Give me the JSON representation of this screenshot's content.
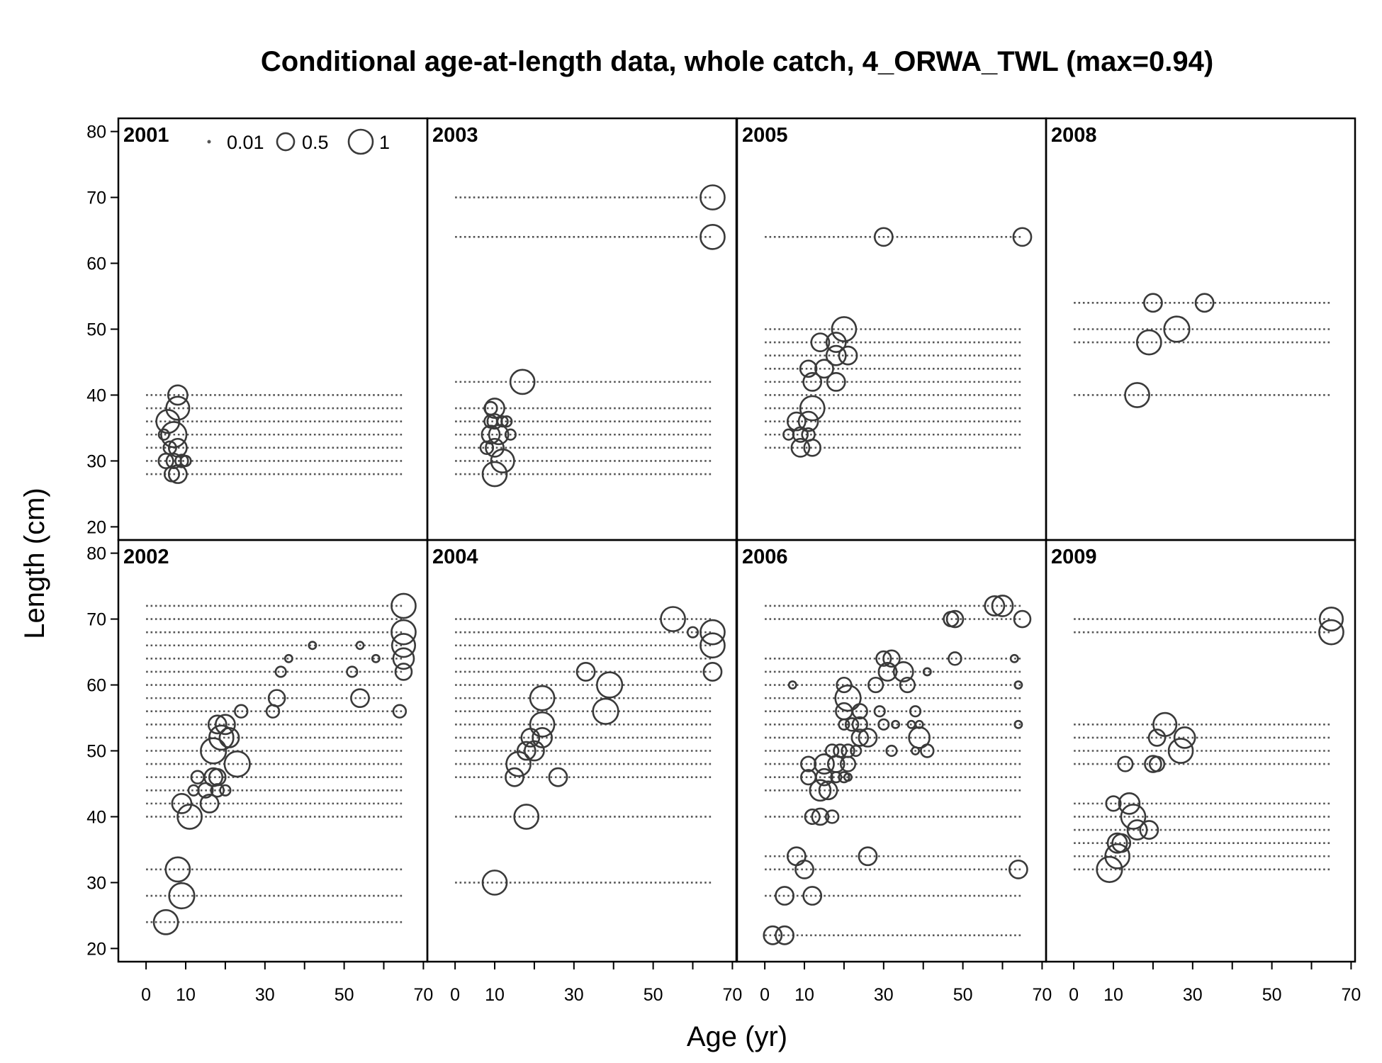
{
  "page": {
    "title": "Conditional age-at-length data, whole catch, 4_ORWA_TWL (max=0.94)"
  },
  "chart_data": {
    "type": "scatter",
    "title": "Conditional age-at-length data, whole catch, 4_ORWA_TWL (max=0.94)",
    "xlabel": "Age (yr)",
    "ylabel": "Length (cm)",
    "xlim": [
      -7,
      71
    ],
    "ylim": [
      18,
      82
    ],
    "x_ticks": [
      0,
      10,
      20,
      30,
      40,
      50,
      60,
      70
    ],
    "x_tick_labels": [
      0,
      10,
      30,
      50,
      70
    ],
    "y_ticks": [
      20,
      30,
      40,
      50,
      60,
      70,
      80
    ],
    "legend": {
      "placement": "top-left of first panel",
      "entries": [
        {
          "label": "0.01",
          "value": 0.01
        },
        {
          "label": "0.5",
          "value": 0.5
        },
        {
          "label": "1",
          "value": 1
        }
      ]
    },
    "panels": [
      {
        "year": "2001",
        "lengths": [
          28,
          30,
          32,
          34,
          36,
          38,
          40
        ],
        "points": [
          [
            5,
            30,
            0.2
          ],
          [
            6,
            32,
            0.15
          ],
          [
            5.5,
            36,
            0.5
          ],
          [
            7,
            34,
            0.6
          ],
          [
            8,
            38,
            0.5
          ],
          [
            8,
            40,
            0.35
          ],
          [
            8,
            32,
            0.3
          ],
          [
            6.5,
            28,
            0.2
          ],
          [
            8,
            28,
            0.3
          ],
          [
            7,
            30,
            0.2
          ],
          [
            9,
            30,
            0.15
          ],
          [
            10,
            30,
            0.1
          ],
          [
            4.5,
            34,
            0.1
          ]
        ]
      },
      {
        "year": "2002",
        "lengths": [
          24,
          28,
          32,
          40,
          42,
          44,
          46,
          48,
          50,
          52,
          54,
          56,
          58,
          60,
          62,
          64,
          66,
          68,
          70,
          72
        ],
        "points": [
          [
            5,
            24,
            0.55
          ],
          [
            9,
            28,
            0.6
          ],
          [
            8,
            32,
            0.55
          ],
          [
            11,
            40,
            0.55
          ],
          [
            9,
            42,
            0.35
          ],
          [
            16,
            42,
            0.3
          ],
          [
            12,
            44,
            0.1
          ],
          [
            15,
            44,
            0.2
          ],
          [
            18,
            44,
            0.15
          ],
          [
            20,
            44,
            0.1
          ],
          [
            13,
            46,
            0.15
          ],
          [
            17,
            46,
            0.3
          ],
          [
            18,
            46,
            0.25
          ],
          [
            23,
            48,
            0.6
          ],
          [
            17,
            50,
            0.6
          ],
          [
            19,
            52,
            0.55
          ],
          [
            21,
            52,
            0.35
          ],
          [
            18,
            54,
            0.3
          ],
          [
            20,
            54,
            0.35
          ],
          [
            24,
            56,
            0.15
          ],
          [
            32,
            56,
            0.15
          ],
          [
            64,
            56,
            0.15
          ],
          [
            33,
            58,
            0.25
          ],
          [
            54,
            58,
            0.3
          ],
          [
            34,
            62,
            0.1
          ],
          [
            52,
            62,
            0.1
          ],
          [
            65,
            62,
            0.25
          ],
          [
            36,
            64,
            0.05
          ],
          [
            58,
            64,
            0.05
          ],
          [
            65,
            64,
            0.4
          ],
          [
            42,
            66,
            0.05
          ],
          [
            54,
            66,
            0.05
          ],
          [
            65,
            66,
            0.5
          ],
          [
            65,
            68,
            0.55
          ],
          [
            65,
            72,
            0.55
          ]
        ]
      },
      {
        "year": "2003",
        "lengths": [
          28,
          30,
          32,
          34,
          36,
          38,
          42,
          64,
          70
        ],
        "points": [
          [
            10,
            28,
            0.55
          ],
          [
            12,
            30,
            0.5
          ],
          [
            8,
            32,
            0.15
          ],
          [
            10,
            32,
            0.3
          ],
          [
            9,
            34,
            0.3
          ],
          [
            11,
            34,
            0.35
          ],
          [
            14,
            34,
            0.1
          ],
          [
            9,
            36,
            0.15
          ],
          [
            10,
            36,
            0.2
          ],
          [
            12,
            36,
            0.1
          ],
          [
            13,
            36,
            0.1
          ],
          [
            9,
            38,
            0.15
          ],
          [
            10,
            38,
            0.35
          ],
          [
            17,
            42,
            0.55
          ],
          [
            65,
            64,
            0.55
          ],
          [
            65,
            70,
            0.55
          ]
        ]
      },
      {
        "year": "2004",
        "lengths": [
          30,
          40,
          46,
          48,
          50,
          52,
          54,
          56,
          58,
          60,
          62,
          64,
          66,
          68,
          70
        ],
        "points": [
          [
            10,
            30,
            0.55
          ],
          [
            18,
            40,
            0.55
          ],
          [
            15,
            46,
            0.3
          ],
          [
            26,
            46,
            0.3
          ],
          [
            16,
            48,
            0.55
          ],
          [
            18,
            50,
            0.3
          ],
          [
            20,
            50,
            0.35
          ],
          [
            19,
            52,
            0.3
          ],
          [
            22,
            52,
            0.35
          ],
          [
            22,
            54,
            0.55
          ],
          [
            38,
            56,
            0.6
          ],
          [
            22,
            58,
            0.55
          ],
          [
            39,
            60,
            0.6
          ],
          [
            33,
            62,
            0.3
          ],
          [
            65,
            62,
            0.3
          ],
          [
            65,
            66,
            0.55
          ],
          [
            65,
            68,
            0.55
          ],
          [
            60,
            68,
            0.1
          ],
          [
            55,
            70,
            0.55
          ]
        ]
      },
      {
        "year": "2005",
        "lengths": [
          32,
          34,
          36,
          38,
          40,
          42,
          44,
          46,
          48,
          50,
          64
        ],
        "points": [
          [
            9,
            32,
            0.3
          ],
          [
            12,
            32,
            0.25
          ],
          [
            6,
            34,
            0.1
          ],
          [
            9,
            34,
            0.2
          ],
          [
            11,
            34,
            0.15
          ],
          [
            8,
            36,
            0.3
          ],
          [
            11,
            36,
            0.35
          ],
          [
            12,
            38,
            0.55
          ],
          [
            12,
            42,
            0.3
          ],
          [
            18,
            42,
            0.3
          ],
          [
            11,
            44,
            0.25
          ],
          [
            15,
            44,
            0.3
          ],
          [
            18,
            46,
            0.35
          ],
          [
            21,
            46,
            0.3
          ],
          [
            14,
            48,
            0.3
          ],
          [
            18,
            48,
            0.35
          ],
          [
            20,
            50,
            0.55
          ],
          [
            30,
            64,
            0.3
          ],
          [
            65,
            64,
            0.3
          ]
        ]
      },
      {
        "year": "2006",
        "lengths": [
          22,
          28,
          32,
          34,
          40,
          44,
          46,
          48,
          50,
          52,
          54,
          56,
          58,
          60,
          62,
          64,
          70,
          72
        ],
        "points": [
          [
            2,
            22,
            0.3
          ],
          [
            5,
            22,
            0.3
          ],
          [
            5,
            28,
            0.3
          ],
          [
            12,
            28,
            0.3
          ],
          [
            10,
            32,
            0.3
          ],
          [
            64,
            32,
            0.3
          ],
          [
            8,
            34,
            0.3
          ],
          [
            26,
            34,
            0.3
          ],
          [
            12,
            40,
            0.2
          ],
          [
            14,
            40,
            0.25
          ],
          [
            17,
            40,
            0.15
          ],
          [
            14,
            44,
            0.4
          ],
          [
            16,
            44,
            0.3
          ],
          [
            11,
            46,
            0.2
          ],
          [
            15,
            46,
            0.25
          ],
          [
            18,
            46,
            0.1
          ],
          [
            20,
            46,
            0.1
          ],
          [
            21,
            46,
            0.05
          ],
          [
            11,
            48,
            0.2
          ],
          [
            15,
            48,
            0.35
          ],
          [
            18,
            48,
            0.25
          ],
          [
            21,
            48,
            0.2
          ],
          [
            17,
            50,
            0.15
          ],
          [
            19,
            50,
            0.15
          ],
          [
            21,
            50,
            0.15
          ],
          [
            23,
            50,
            0.1
          ],
          [
            32,
            50,
            0.1
          ],
          [
            38,
            50,
            0.05
          ],
          [
            41,
            50,
            0.15
          ],
          [
            24,
            52,
            0.25
          ],
          [
            26,
            52,
            0.3
          ],
          [
            39,
            52,
            0.4
          ],
          [
            20,
            54,
            0.1
          ],
          [
            22,
            54,
            0.15
          ],
          [
            24,
            54,
            0.2
          ],
          [
            30,
            54,
            0.1
          ],
          [
            33,
            54,
            0.05
          ],
          [
            37,
            54,
            0.05
          ],
          [
            39,
            54,
            0.05
          ],
          [
            64,
            54,
            0.05
          ],
          [
            20,
            56,
            0.25
          ],
          [
            24,
            56,
            0.2
          ],
          [
            29,
            56,
            0.1
          ],
          [
            38,
            56,
            0.1
          ],
          [
            21,
            58,
            0.6
          ],
          [
            7,
            60,
            0.05
          ],
          [
            20,
            60,
            0.2
          ],
          [
            28,
            60,
            0.2
          ],
          [
            36,
            60,
            0.2
          ],
          [
            64,
            60,
            0.05
          ],
          [
            31,
            62,
            0.3
          ],
          [
            35,
            62,
            0.35
          ],
          [
            41,
            62,
            0.05
          ],
          [
            30,
            64,
            0.2
          ],
          [
            32,
            64,
            0.25
          ],
          [
            48,
            64,
            0.15
          ],
          [
            63,
            64,
            0.05
          ],
          [
            47,
            70,
            0.2
          ],
          [
            48,
            70,
            0.25
          ],
          [
            65,
            70,
            0.25
          ],
          [
            58,
            72,
            0.35
          ],
          [
            60,
            72,
            0.4
          ]
        ]
      },
      {
        "year": "2008",
        "lengths": [
          40,
          48,
          50,
          54
        ],
        "points": [
          [
            16,
            40,
            0.55
          ],
          [
            19,
            48,
            0.55
          ],
          [
            26,
            50,
            0.6
          ],
          [
            20,
            54,
            0.3
          ],
          [
            33,
            54,
            0.3
          ]
        ]
      },
      {
        "year": "2009",
        "lengths": [
          32,
          34,
          36,
          38,
          40,
          42,
          48,
          50,
          52,
          54,
          68,
          70
        ],
        "points": [
          [
            9,
            32,
            0.6
          ],
          [
            11,
            34,
            0.55
          ],
          [
            11,
            36,
            0.35
          ],
          [
            12,
            36,
            0.3
          ],
          [
            16,
            38,
            0.35
          ],
          [
            19,
            38,
            0.3
          ],
          [
            15,
            40,
            0.55
          ],
          [
            10,
            42,
            0.2
          ],
          [
            14,
            42,
            0.4
          ],
          [
            13,
            48,
            0.2
          ],
          [
            20,
            48,
            0.25
          ],
          [
            21,
            48,
            0.2
          ],
          [
            27,
            50,
            0.55
          ],
          [
            21,
            52,
            0.25
          ],
          [
            28,
            52,
            0.4
          ],
          [
            23,
            54,
            0.5
          ],
          [
            65,
            68,
            0.55
          ],
          [
            65,
            70,
            0.5
          ]
        ]
      }
    ]
  }
}
